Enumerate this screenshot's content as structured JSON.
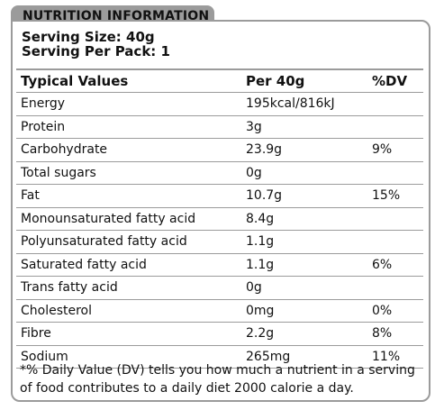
{
  "title": "NUTRITION INFORMATION",
  "serving": {
    "size": "Serving Size: 40g",
    "per_pack": "Serving Per Pack: 1"
  },
  "table": {
    "headers": [
      "Typical Values",
      "Per 40g",
      "%DV"
    ],
    "rows": [
      [
        "Energy",
        "195kcal/816kJ",
        ""
      ],
      [
        "Protein",
        "3g",
        ""
      ],
      [
        "Carbohydrate",
        "23.9g",
        "9%"
      ],
      [
        "Total sugars",
        "0g",
        ""
      ],
      [
        "Fat",
        "10.7g",
        "15%"
      ],
      [
        "Monounsaturated fatty acid",
        "8.4g",
        ""
      ],
      [
        "Polyunsaturated fatty acid",
        "1.1g",
        ""
      ],
      [
        "Saturated fatty acid",
        "1.1g",
        "6%"
      ],
      [
        "Trans fatty acid",
        "0g",
        ""
      ],
      [
        "Cholesterol",
        "0mg",
        "0%"
      ],
      [
        "Fibre",
        "2.2g",
        "8%"
      ],
      [
        "Sodium",
        "265mg",
        "11%"
      ]
    ]
  },
  "footnote": "*% Daily Value (DV) tells you how much a nutrient in a serving of food contributes to a daily diet 2000 calorie a day."
}
